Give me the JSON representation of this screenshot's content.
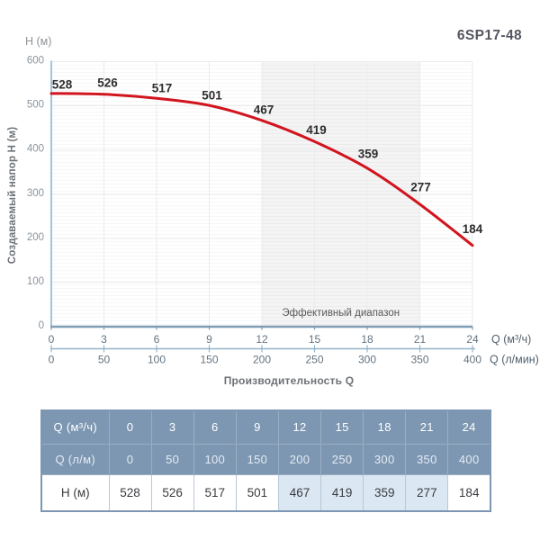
{
  "title": "6SP17-48",
  "chart": {
    "top_axis_label": "H (м)",
    "y_axis_label": "Создаваемый напор H (м)",
    "x_axis_label": "Производительность Q",
    "x_unit_primary": "Q (м³/ч)",
    "x_unit_secondary": "Q (л/мин)",
    "band_label": "Эффективный диапазон"
  },
  "chart_data": {
    "type": "line",
    "title": "6SP17-48",
    "x": [
      0,
      3,
      6,
      9,
      12,
      15,
      18,
      21,
      24
    ],
    "x_secondary": [
      0,
      50,
      100,
      150,
      200,
      250,
      300,
      350,
      400
    ],
    "series": [
      {
        "name": "H (м)",
        "values": [
          528,
          526,
          517,
          501,
          467,
          419,
          359,
          277,
          184
        ]
      }
    ],
    "xlabel": "Производительность Q",
    "ylabel": "Создаваемый напор H (м)",
    "xlim": [
      0,
      24
    ],
    "ylim": [
      0,
      600
    ],
    "y_ticks": [
      0,
      100,
      200,
      300,
      400,
      500,
      600
    ],
    "grid": true,
    "effective_range_x": [
      12,
      21
    ],
    "curve_color": "#d1151f",
    "axis_color_x": "#7f9db4",
    "axis_color_y": "#a3c4da",
    "grid_color": "#ebebeb",
    "band_fill": "rgba(60,60,70,0.055)",
    "tick_text_color": "#64737f",
    "ytick_text_color": "#8a949c",
    "unit_text_color": "#50606d",
    "point_label_color": "#2e2e30",
    "band_text_color": "#57585a",
    "label_offsets_dx": [
      12,
      4,
      6,
      3,
      2,
      2,
      1,
      1,
      0
    ],
    "label_offsets_dy": [
      10,
      13,
      11,
      11,
      12,
      13,
      16,
      19,
      18
    ]
  },
  "table": {
    "rows": [
      {
        "label": "Q (м³/ч)",
        "values": [
          "0",
          "3",
          "6",
          "9",
          "12",
          "15",
          "18",
          "21",
          "24"
        ]
      },
      {
        "label": "Q (л/м)",
        "values": [
          "0",
          "50",
          "100",
          "150",
          "200",
          "250",
          "300",
          "350",
          "400"
        ]
      },
      {
        "label": "H (м)",
        "values": [
          "528",
          "526",
          "517",
          "501",
          "467",
          "419",
          "359",
          "277",
          "184"
        ]
      }
    ],
    "highlight_columns": [
      4,
      5,
      6,
      7
    ],
    "header_bg": "#7d97b2",
    "highlight_bg": "#dbe7f3"
  }
}
